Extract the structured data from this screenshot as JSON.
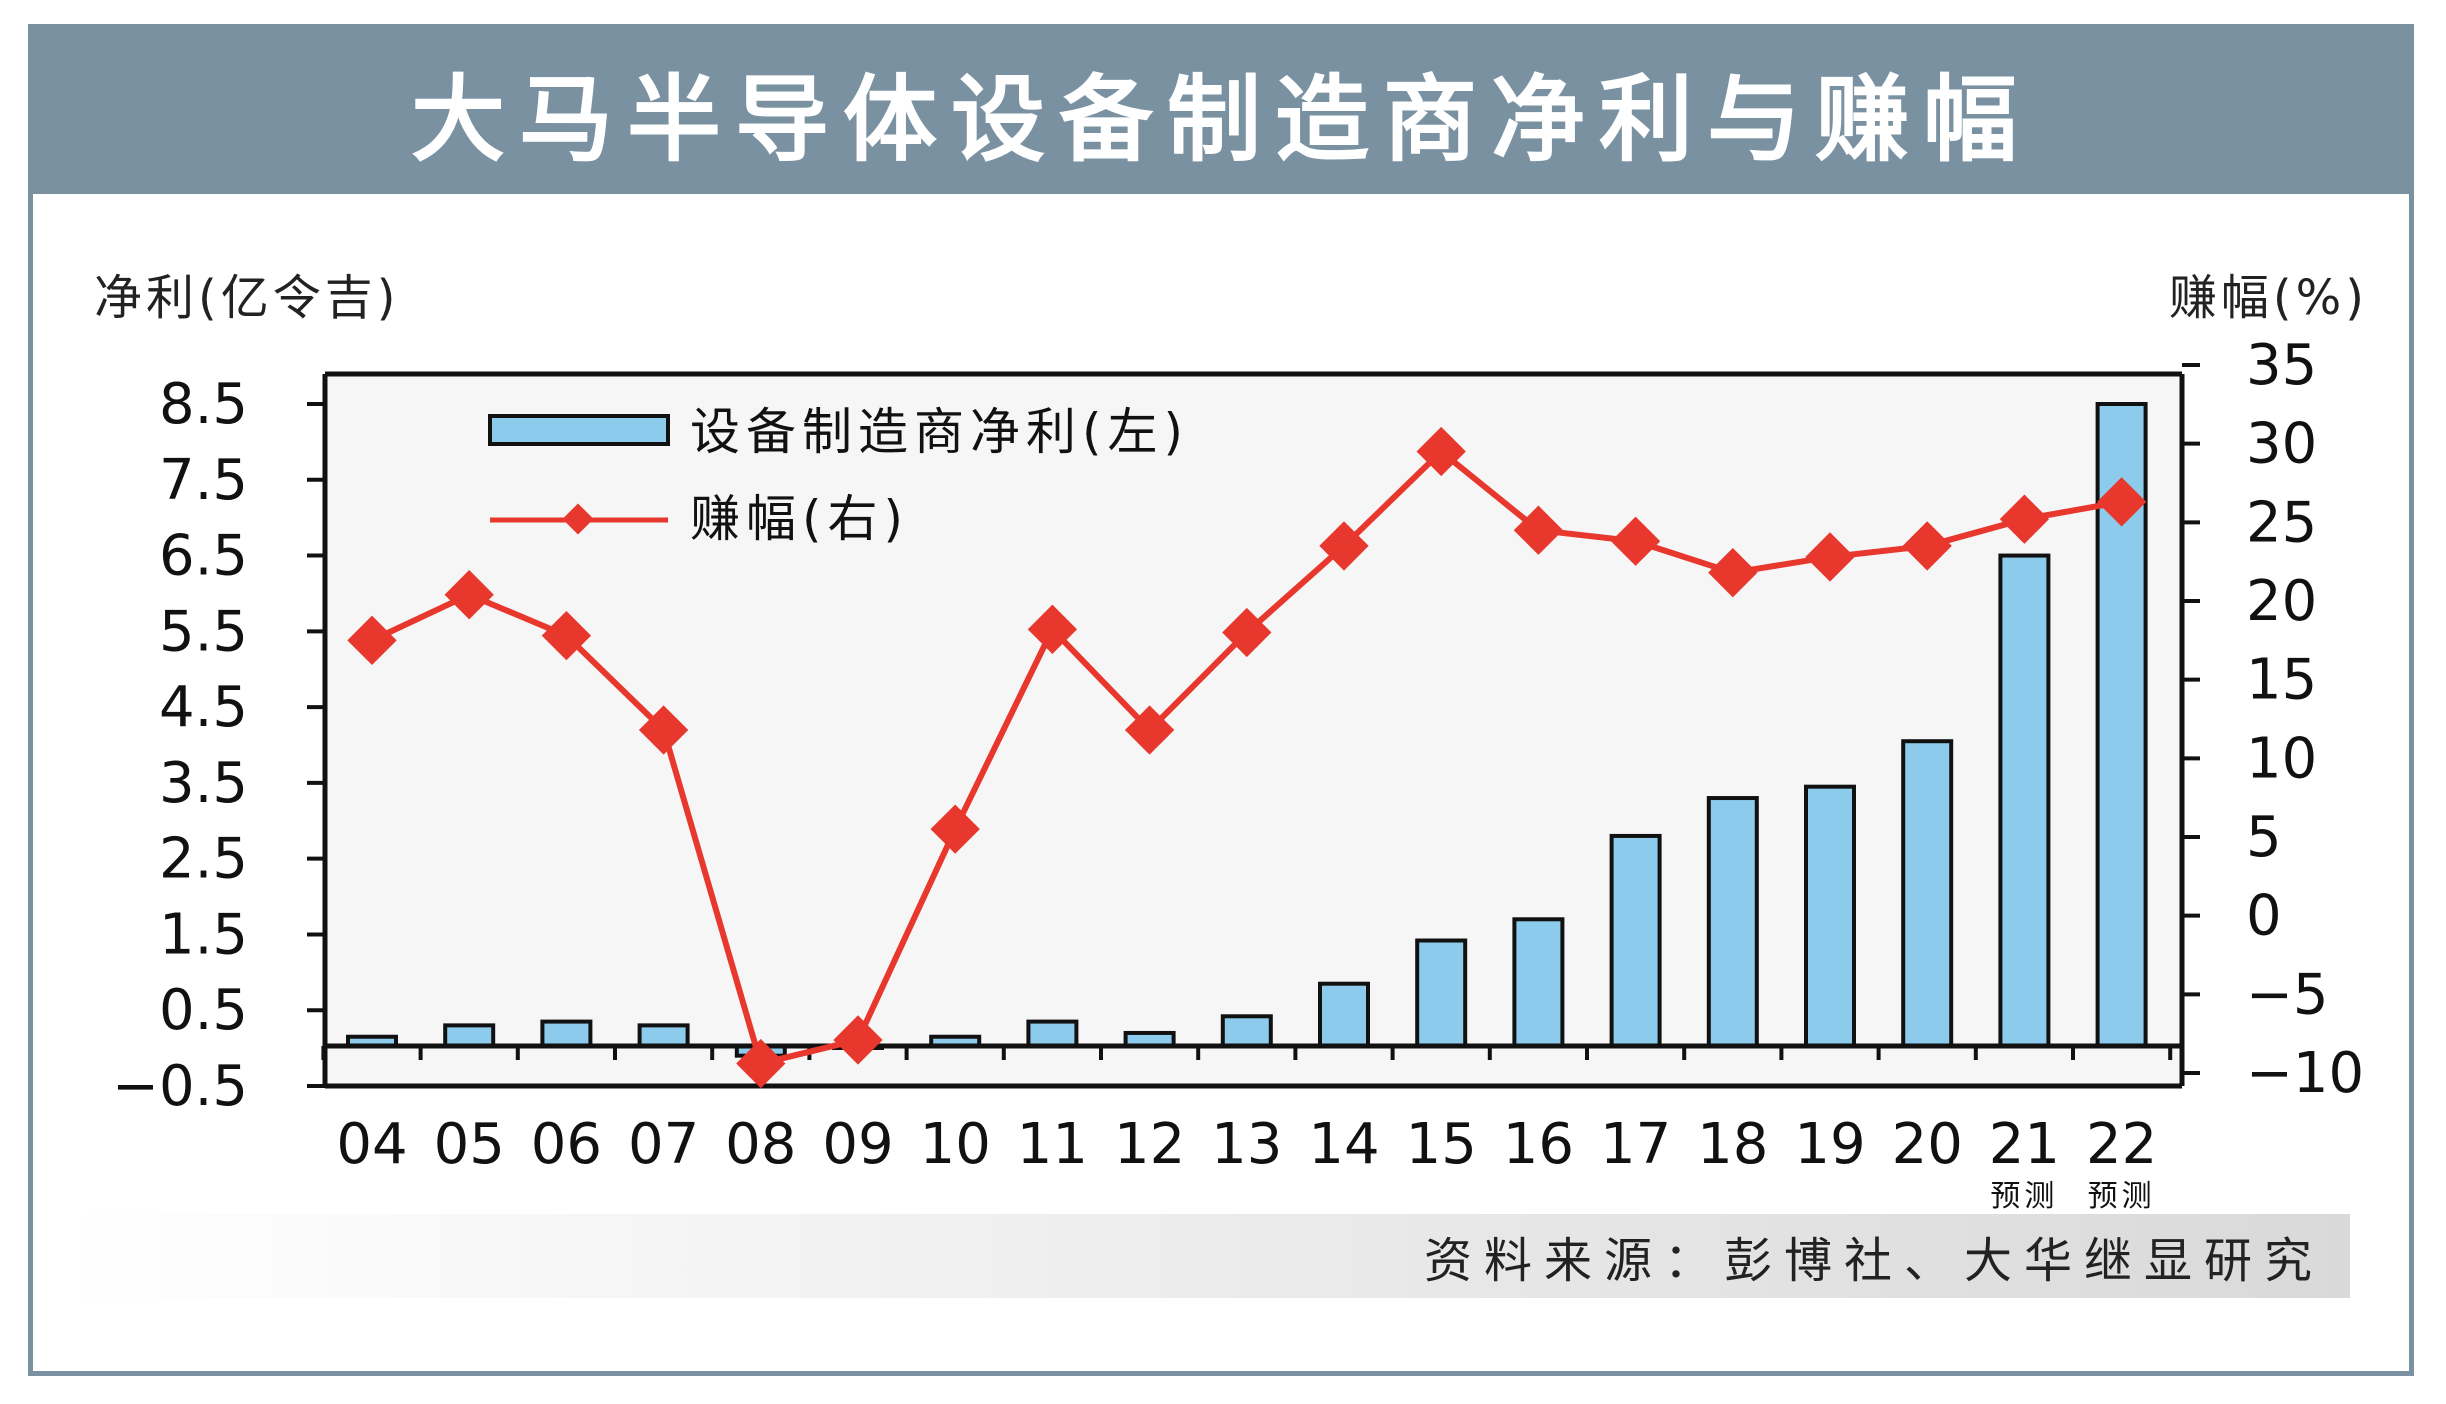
{
  "header": {
    "title": "大马半导体设备制造商净利与赚幅"
  },
  "footer": {
    "source": "资料来源：彭博社、大华继显研究"
  },
  "chart_data": {
    "type": "bar",
    "title": "大马半导体设备制造商净利与赚幅",
    "ylabel_left": "净利(亿令吉)",
    "ylabel_right": "赚幅(%)",
    "categories": [
      "04",
      "05",
      "06",
      "07",
      "08",
      "09",
      "10",
      "11",
      "12",
      "13",
      "14",
      "15",
      "16",
      "17",
      "18",
      "19",
      "20",
      "21",
      "22"
    ],
    "forecast_note": "预测",
    "forecast_categories": [
      "21",
      "22"
    ],
    "y_left": {
      "min": -0.5,
      "max": 8.5,
      "ticks": [
        "8.5",
        "7.5",
        "6.5",
        "5.5",
        "4.5",
        "3.5",
        "2.5",
        "1.5",
        "0.5",
        "−0.5"
      ]
    },
    "y_right": {
      "min": -10,
      "max": 35,
      "ticks": [
        "35",
        "30",
        "25",
        "20",
        "15",
        "10",
        "5",
        "0",
        "−5",
        "−10"
      ]
    },
    "series": [
      {
        "name": "设备制造商净利(左)",
        "axis": "left",
        "type": "bar",
        "color": "#8ccbec",
        "values": [
          0.15,
          0.3,
          0.35,
          0.3,
          -0.1,
          0.0,
          0.15,
          0.35,
          0.2,
          0.42,
          0.85,
          1.42,
          1.7,
          2.8,
          3.3,
          3.45,
          4.05,
          6.5,
          8.5
        ]
      },
      {
        "name": "赚幅(右)",
        "axis": "right",
        "type": "line",
        "color": "#e8372d",
        "values": [
          17.5,
          20.4,
          17.8,
          11.8,
          -9.4,
          -7.9,
          5.5,
          18.2,
          11.8,
          18.0,
          23.5,
          29.5,
          24.5,
          23.8,
          21.8,
          22.8,
          23.5,
          25.2,
          26.3
        ]
      }
    ]
  }
}
